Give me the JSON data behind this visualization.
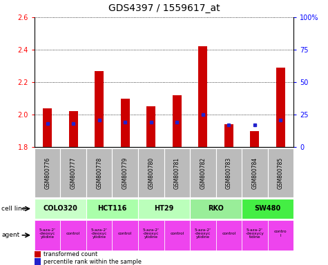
{
  "title": "GDS4397 / 1559617_at",
  "samples": [
    "GSM800776",
    "GSM800777",
    "GSM800778",
    "GSM800779",
    "GSM800780",
    "GSM800781",
    "GSM800782",
    "GSM800783",
    "GSM800784",
    "GSM800785"
  ],
  "transformed_count": [
    2.04,
    2.02,
    2.27,
    2.1,
    2.05,
    2.12,
    2.42,
    1.94,
    1.9,
    2.29
  ],
  "bar_bottom": 1.8,
  "percentile_rank_pct": [
    18,
    18,
    21,
    19,
    19,
    19,
    25,
    17,
    17,
    21
  ],
  "ylim": [
    1.8,
    2.6
  ],
  "yticks": [
    1.8,
    2.0,
    2.2,
    2.4,
    2.6
  ],
  "right_yticks": [
    0,
    25,
    50,
    75,
    100
  ],
  "cell_lines": [
    {
      "name": "COLO320",
      "start": 0,
      "end": 2,
      "color": "#c8ffc8"
    },
    {
      "name": "HCT116",
      "start": 2,
      "end": 4,
      "color": "#aaffaa"
    },
    {
      "name": "HT29",
      "start": 4,
      "end": 6,
      "color": "#bbffbb"
    },
    {
      "name": "RKO",
      "start": 6,
      "end": 8,
      "color": "#99ee99"
    },
    {
      "name": "SW480",
      "start": 8,
      "end": 10,
      "color": "#44ee44"
    }
  ],
  "agent_names": [
    "5-aza-2'\n-deoxyc\nytidine",
    "control",
    "5-aza-2'\n-deoxyc\nytidine",
    "control",
    "5-aza-2'\n-deoxyc\nytidine",
    "control",
    "5-aza-2'\n-deoxyc\nytidine",
    "control",
    "5-aza-2'\n-deoxycy\ntidine",
    "contro\nl"
  ],
  "agent_color": "#ee44ee",
  "bar_color": "#cc0000",
  "blue_marker_color": "#2222cc",
  "sample_bg_color": "#bbbbbb",
  "bar_width": 0.35,
  "title_fontsize": 10
}
